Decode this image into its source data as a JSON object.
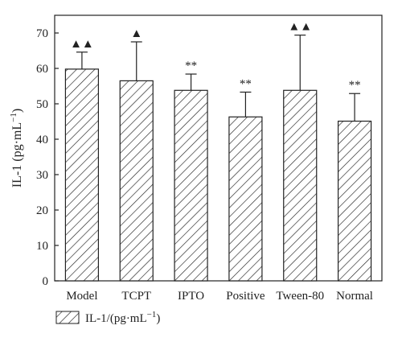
{
  "chart_data": {
    "type": "bar",
    "categories": [
      "Model",
      "TCPT",
      "IPTO",
      "Positive",
      "Tween-80",
      "Normal"
    ],
    "series": [
      {
        "name": "IL-1/(pg·mL−1)",
        "values": [
          59.8,
          56.5,
          53.8,
          46.3,
          53.8,
          45.1
        ],
        "error": [
          4.8,
          11.0,
          4.6,
          7.0,
          15.6,
          7.8
        ]
      }
    ],
    "annotations": [
      "▲▲",
      "▲",
      "**",
      "**",
      "▲▲",
      "**"
    ],
    "ylabel": "IL-1 (pg·mL−1)",
    "xlabel": "",
    "ylim": [
      0,
      75
    ],
    "yticks": [
      0,
      10,
      20,
      30,
      40,
      50,
      60,
      70
    ],
    "grid": false,
    "legend_position": "bottom-left",
    "fill_pattern": "diagonal-hatch",
    "colors": {
      "bar_stroke": "#222222",
      "axis": "#222222",
      "background": "#ffffff"
    }
  }
}
